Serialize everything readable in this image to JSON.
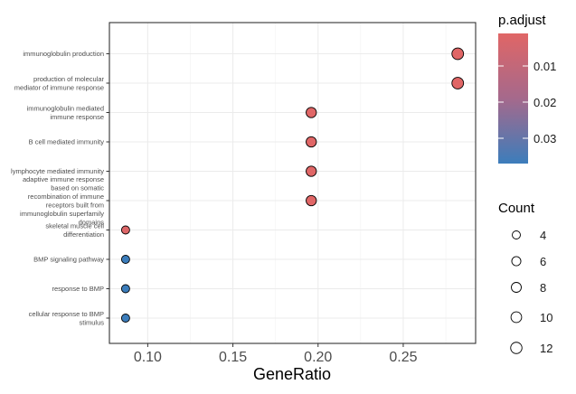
{
  "chart_data": {
    "type": "scatter",
    "title": "",
    "xlabel": "GeneRatio",
    "ylabel": "",
    "xlim": [
      0.0775,
      0.2925
    ],
    "x_ticks": [
      "0.10",
      "0.15",
      "0.20",
      "0.25"
    ],
    "x_tick_values": [
      0.1,
      0.15,
      0.2,
      0.25
    ],
    "grid": true,
    "categories": [
      [
        "immunoglobulin production"
      ],
      [
        "production of molecular",
        "mediator of immune response"
      ],
      [
        "immunoglobulin mediated",
        "immune response"
      ],
      [
        "B cell mediated immunity"
      ],
      [
        "lymphocyte mediated immunity"
      ],
      [
        "adaptive immune response",
        "based on somatic",
        "recombination of immune",
        "receptors built from",
        "immunoglobulin superfamily",
        "domains"
      ],
      [
        "skeletal muscle cell",
        "differentiation"
      ],
      [
        "BMP signaling pathway"
      ],
      [
        "response to BMP"
      ],
      [
        "cellular response to BMP",
        "stimulus"
      ]
    ],
    "points": [
      {
        "x": 0.282,
        "count": 13,
        "p_adjust": 0.001
      },
      {
        "x": 0.282,
        "count": 13,
        "p_adjust": 0.001
      },
      {
        "x": 0.196,
        "count": 9,
        "p_adjust": 0.001
      },
      {
        "x": 0.196,
        "count": 9,
        "p_adjust": 0.001
      },
      {
        "x": 0.196,
        "count": 9,
        "p_adjust": 0.001
      },
      {
        "x": 0.196,
        "count": 9,
        "p_adjust": 0.001
      },
      {
        "x": 0.087,
        "count": 4,
        "p_adjust": 0.002
      },
      {
        "x": 0.087,
        "count": 4,
        "p_adjust": 0.037
      },
      {
        "x": 0.087,
        "count": 4,
        "p_adjust": 0.037
      },
      {
        "x": 0.087,
        "count": 4,
        "p_adjust": 0.037
      }
    ],
    "color_legend": {
      "title": "p.adjust",
      "ticks": [
        "0.01",
        "0.02",
        "0.03"
      ],
      "tick_values": [
        0.01,
        0.02,
        0.03
      ],
      "range": [
        0.001,
        0.037
      ],
      "low_color": "#e06666",
      "high_color": "#3c7dbb"
    },
    "size_legend": {
      "title": "Count",
      "values": [
        4,
        6,
        8,
        10,
        12
      ],
      "labels": [
        "4",
        "6",
        "8",
        "10",
        "12"
      ]
    }
  }
}
